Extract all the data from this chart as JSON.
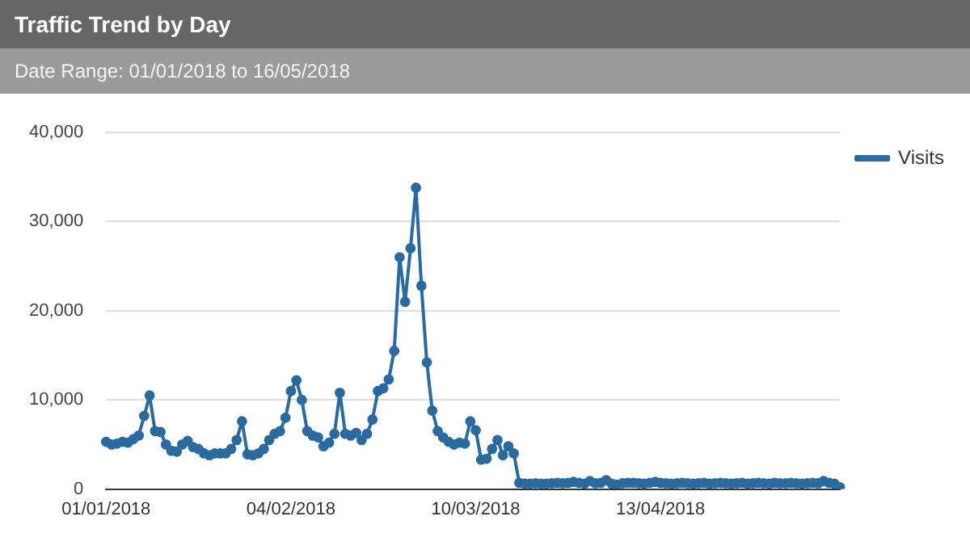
{
  "chart_data": {
    "type": "line",
    "title": "Traffic Trend by Day",
    "subtitle": "Date Range: 01/01/2018 to 16/05/2018",
    "categories": [
      "01/01/2018",
      null,
      null,
      null,
      null,
      null,
      null,
      null,
      null,
      null,
      null,
      null,
      null,
      null,
      null,
      null,
      null,
      null,
      null,
      null,
      null,
      null,
      null,
      null,
      null,
      null,
      null,
      null,
      null,
      null,
      null,
      null,
      null,
      null,
      "04/02/2018",
      null,
      null,
      null,
      null,
      null,
      null,
      null,
      null,
      null,
      null,
      null,
      null,
      null,
      null,
      null,
      null,
      null,
      null,
      null,
      null,
      null,
      null,
      null,
      null,
      null,
      null,
      null,
      null,
      null,
      null,
      null,
      null,
      null,
      "10/03/2018",
      null,
      null,
      null,
      null,
      null,
      null,
      null,
      null,
      null,
      null,
      null,
      null,
      null,
      null,
      null,
      null,
      null,
      null,
      null,
      null,
      null,
      null,
      null,
      null,
      null,
      null,
      null,
      null,
      null,
      null,
      null,
      null,
      null,
      "13/04/2018",
      null,
      null,
      null,
      null,
      null,
      null,
      null,
      null,
      null,
      null,
      null,
      null,
      null,
      null,
      null,
      null,
      null,
      null,
      null,
      null,
      null,
      null,
      null,
      null,
      null,
      null,
      null,
      null,
      null,
      null,
      null,
      null,
      null
    ],
    "series": [
      {
        "name": "Visits",
        "color": "#2b6a9e",
        "values": [
          5300,
          5000,
          5100,
          5300,
          5200,
          5600,
          6000,
          8200,
          10500,
          6500,
          6400,
          5000,
          4300,
          4200,
          5000,
          5400,
          4700,
          4500,
          4000,
          3800,
          4000,
          4000,
          4000,
          4500,
          5500,
          7600,
          3900,
          3800,
          4000,
          4500,
          5500,
          6200,
          6500,
          8000,
          11000,
          12200,
          10000,
          6500,
          6000,
          5800,
          4800,
          5200,
          6200,
          10800,
          6200,
          6000,
          6300,
          5500,
          6200,
          7800,
          11000,
          11300,
          12300,
          15500,
          26000,
          21000,
          27000,
          33800,
          22800,
          14200,
          8800,
          6500,
          5800,
          5300,
          5000,
          5200,
          5100,
          7600,
          6600,
          3300,
          3400,
          4500,
          5500,
          3800,
          4800,
          4000,
          700,
          600,
          600,
          650,
          600,
          600,
          650,
          700,
          650,
          700,
          800,
          700,
          600,
          900,
          650,
          700,
          1000,
          600,
          500,
          650,
          700,
          700,
          650,
          600,
          700,
          800,
          700,
          650,
          600,
          650,
          700,
          650,
          600,
          650,
          700,
          600,
          650,
          700,
          650,
          600,
          650,
          700,
          600,
          650,
          700,
          650,
          600,
          700,
          650,
          650,
          700,
          650,
          600,
          650,
          700,
          650,
          900,
          700,
          600,
          200
        ]
      }
    ],
    "ylim": [
      0,
      40000
    ],
    "yticks": [
      0,
      {
        "value": 10000,
        "label": "10,000"
      },
      {
        "value": 20000,
        "label": "20,000"
      },
      {
        "value": 30000,
        "label": "30,000"
      },
      {
        "value": 40000,
        "label": "40,000"
      }
    ],
    "grid": "y",
    "legend": "right",
    "marker": "circle",
    "line_style": "solid"
  }
}
